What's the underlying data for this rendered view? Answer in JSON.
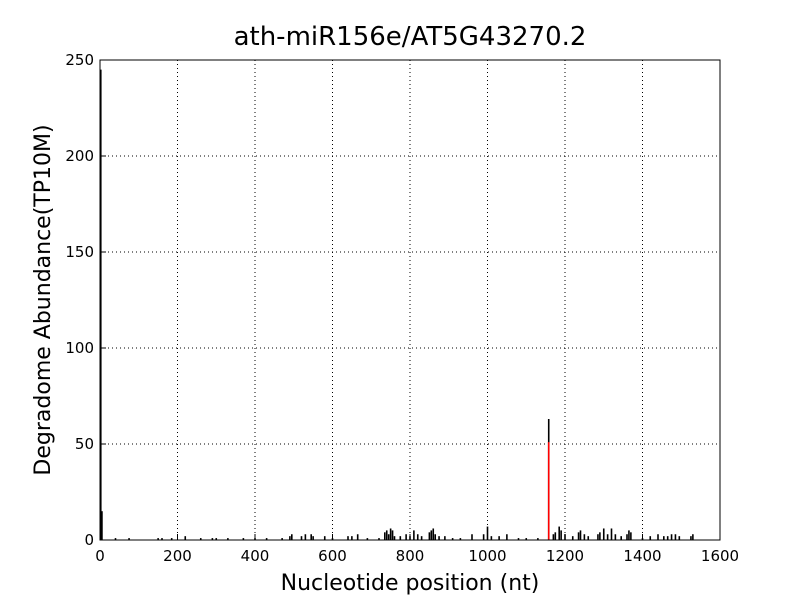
{
  "chart_data": {
    "type": "stem",
    "title": "ath-miR156e/AT5G43270.2",
    "x_label": "Nucleotide position (nt)",
    "y_label": "Degradome Abundance(TP10M)",
    "xlim": [
      0,
      1600
    ],
    "ylim": [
      0,
      250
    ],
    "xticks": [
      0,
      200,
      400,
      600,
      800,
      1000,
      1200,
      1400,
      1600
    ],
    "yticks": [
      0,
      50,
      100,
      150,
      200,
      250
    ],
    "grid": true,
    "series": [
      {
        "color": "#000000",
        "x": [
          2,
          5,
          40,
          75,
          150,
          160,
          185,
          220,
          260,
          290,
          300,
          330,
          370,
          400,
          430,
          470,
          490,
          495,
          520,
          530,
          545,
          550,
          580,
          600,
          640,
          650,
          665,
          690,
          720,
          735,
          740,
          745,
          750,
          755,
          760,
          775,
          790,
          800,
          810,
          820,
          830,
          850,
          855,
          860,
          865,
          875,
          890,
          910,
          930,
          960,
          990,
          1000,
          1010,
          1030,
          1050,
          1080,
          1100,
          1130,
          1158,
          1170,
          1175,
          1185,
          1190,
          1200,
          1220,
          1235,
          1240,
          1250,
          1260,
          1285,
          1290,
          1300,
          1310,
          1320,
          1330,
          1345,
          1360,
          1365,
          1370,
          1400,
          1420,
          1440,
          1455,
          1465,
          1475,
          1485,
          1495,
          1525,
          1530
        ],
        "values": [
          245,
          15,
          1,
          1,
          1,
          1,
          1,
          2,
          1,
          1,
          1,
          1,
          1,
          1,
          1,
          1,
          2,
          3,
          2,
          3,
          3,
          2,
          2,
          1,
          2,
          2,
          3,
          1,
          1,
          4,
          5,
          3,
          6,
          5,
          2,
          2,
          3,
          2,
          5,
          3,
          2,
          4,
          5,
          6,
          3,
          2,
          2,
          1,
          1,
          3,
          3,
          7,
          2,
          2,
          3,
          1,
          1,
          1,
          63,
          3,
          4,
          7,
          5,
          3,
          2,
          4,
          5,
          3,
          2,
          3,
          4,
          6,
          3,
          6,
          3,
          2,
          3,
          5,
          4,
          1,
          2,
          3,
          2,
          2,
          3,
          3,
          2,
          2,
          3
        ]
      },
      {
        "color": "#ff0000",
        "x": [
          1158
        ],
        "values": [
          51
        ]
      }
    ]
  }
}
